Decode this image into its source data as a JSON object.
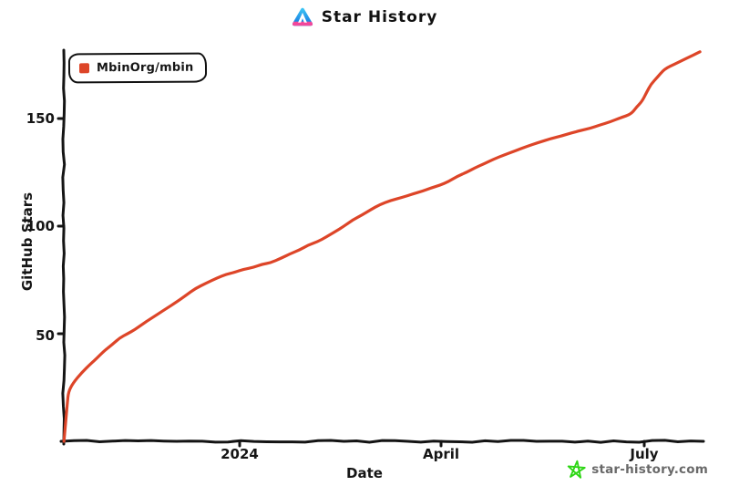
{
  "header": {
    "title": "Star History"
  },
  "legend": {
    "label": "MbinOrg/mbin",
    "marker_color": "#dd4528"
  },
  "axes": {
    "y_label": "GitHub Stars",
    "x_label": "Date",
    "y_ticks": [
      50,
      100,
      150
    ],
    "x_ticks": [
      "2024",
      "April",
      "July"
    ]
  },
  "footer": {
    "site": "star-history.com"
  },
  "colors": {
    "line": "#dd4528",
    "axis": "#141414",
    "star_icon": "#2ed615",
    "logo_cyan": "#3ec9f5",
    "logo_blue": "#1e88e5",
    "logo_pink": "#f2479b",
    "footer_text": "#696969"
  },
  "chart_data": {
    "type": "line",
    "title": "Star History",
    "xlabel": "Date",
    "ylabel": "GitHub Stars",
    "x_tick_labels": [
      "2024",
      "April",
      "July"
    ],
    "y_ticks": [
      50,
      100,
      150
    ],
    "ylim": [
      0,
      185
    ],
    "x_range": [
      "2023-10-14",
      "2024-07-26"
    ],
    "grid": false,
    "legend_position": "top-left",
    "series": [
      {
        "name": "MbinOrg/mbin",
        "color": "#dd4528",
        "points": [
          [
            "2023-10-14",
            0
          ],
          [
            "2023-10-15",
            12
          ],
          [
            "2023-10-16",
            23
          ],
          [
            "2023-10-18",
            27
          ],
          [
            "2023-10-22",
            32
          ],
          [
            "2023-10-26",
            36
          ],
          [
            "2023-11-01",
            42
          ],
          [
            "2023-11-08",
            48
          ],
          [
            "2023-11-15",
            52
          ],
          [
            "2023-11-22",
            57
          ],
          [
            "2023-11-28",
            61
          ],
          [
            "2023-12-04",
            65
          ],
          [
            "2023-12-12",
            71
          ],
          [
            "2023-12-22",
            76
          ],
          [
            "2024-01-03",
            80
          ],
          [
            "2024-01-15",
            83
          ],
          [
            "2024-01-28",
            89
          ],
          [
            "2024-02-09",
            95
          ],
          [
            "2024-02-21",
            103
          ],
          [
            "2024-03-04",
            110
          ],
          [
            "2024-03-19",
            115
          ],
          [
            "2024-03-31",
            119
          ],
          [
            "2024-04-12",
            125
          ],
          [
            "2024-04-24",
            131
          ],
          [
            "2024-05-09",
            137
          ],
          [
            "2024-05-25",
            142
          ],
          [
            "2024-06-11",
            147
          ],
          [
            "2024-06-25",
            152
          ],
          [
            "2024-06-30",
            158
          ],
          [
            "2024-07-04",
            166
          ],
          [
            "2024-07-10",
            173
          ],
          [
            "2024-07-20",
            178
          ],
          [
            "2024-07-26",
            181
          ]
        ]
      }
    ]
  }
}
